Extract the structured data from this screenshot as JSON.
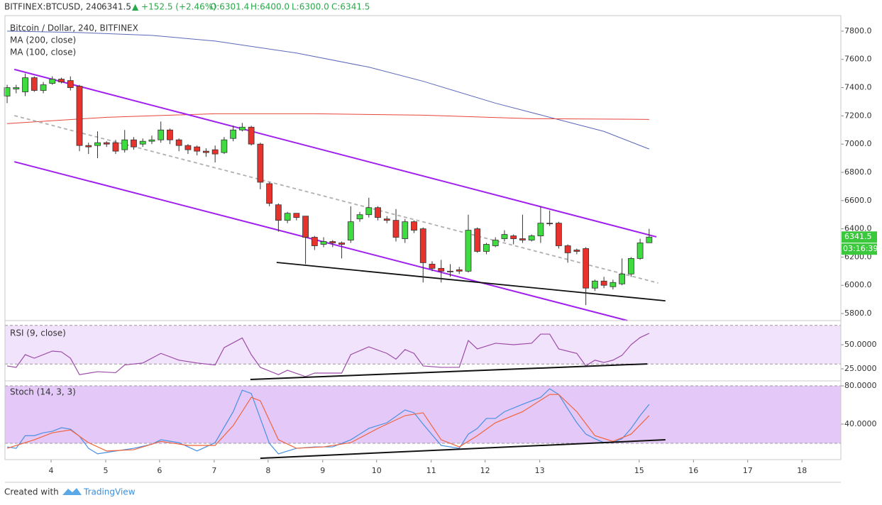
{
  "chart_data": {
    "type": "candlestick",
    "header": {
      "symbol": "BITFINEX:BTCUSD, 240",
      "last": "6341.5",
      "change": "▲ +152.5 (+2.46%)",
      "open": "O:6301.4",
      "high": "H:6400.0",
      "low": "L:6300.0",
      "close": "C:6341.5"
    },
    "title": "Bitcoin / Dollar, 240, BITFINEX",
    "countdown": "03:16:39",
    "up_color": "#3fdc3f",
    "down_color": "#e8322c",
    "xlim": [
      -0.24,
      92.2
    ],
    "xticks": [
      {
        "value": 4.86,
        "label": "4"
      },
      {
        "value": 10.9,
        "label": "5"
      },
      {
        "value": 16.86,
        "label": "6"
      },
      {
        "value": 22.9,
        "label": "7"
      },
      {
        "value": 28.86,
        "label": "8"
      },
      {
        "value": 34.9,
        "label": "9"
      },
      {
        "value": 40.86,
        "label": "10"
      },
      {
        "value": 46.9,
        "label": "11"
      },
      {
        "value": 52.86,
        "label": "12"
      },
      {
        "value": 58.9,
        "label": "13"
      },
      {
        "value": 69.9,
        "label": "15"
      },
      {
        "value": 75.9,
        "label": "16"
      },
      {
        "value": 81.9,
        "label": "17"
      },
      {
        "value": 87.9,
        "label": "18"
      }
    ],
    "ylim": [
      5750,
      7910
    ],
    "yticks": [
      {
        "value": 5800,
        "label": "5800.0"
      },
      {
        "value": 6000,
        "label": "6000.0"
      },
      {
        "value": 6200,
        "label": "6200.0"
      },
      {
        "value": 6400,
        "label": "6400.0"
      },
      {
        "value": 6600,
        "label": "6600.0"
      },
      {
        "value": 6800,
        "label": "6800.0"
      },
      {
        "value": 7000,
        "label": "7000.0"
      },
      {
        "value": 7200,
        "label": "7200.0"
      },
      {
        "value": 7400,
        "label": "7400.0"
      },
      {
        "value": 7600,
        "label": "7600.0"
      },
      {
        "value": 7800,
        "label": "7800.0"
      }
    ],
    "open": [
      7340,
      7390,
      7370,
      7470,
      7380,
      7430,
      7460,
      7450,
      7410,
      6990,
      6990,
      7010,
      7010,
      6960,
      7030,
      7000,
      7020,
      7030,
      7100,
      7030,
      6990,
      6980,
      6950,
      6960,
      6940,
      7040,
      7100,
      7120,
      7000,
      6720,
      6570,
      6460,
      6510,
      6490,
      6340,
      6290,
      6310,
      6300,
      6320,
      6470,
      6500,
      6550,
      6470,
      6460,
      6330,
      6450,
      6400,
      6150,
      6120,
      6100,
      6110,
      6100,
      6400,
      6240,
      6280,
      6330,
      6350,
      6330,
      6320,
      6350,
      6440,
      6440,
      6280,
      6250,
      6260,
      5980,
      6030,
      5990,
      6010,
      6080,
      6190,
      6301.4
    ],
    "high": [
      7420,
      7420,
      7500,
      7480,
      7440,
      7480,
      7470,
      7480,
      7420,
      7010,
      7090,
      7020,
      7030,
      7100,
      7050,
      7040,
      7060,
      7160,
      7110,
      7040,
      7000,
      6990,
      6970,
      6990,
      7050,
      7130,
      7150,
      7130,
      7010,
      6730,
      6580,
      6520,
      6500,
      6490,
      6350,
      6340,
      6320,
      6310,
      6560,
      6520,
      6620,
      6560,
      6490,
      6540,
      6470,
      6460,
      6410,
      6170,
      6180,
      6150,
      6130,
      6500,
      6410,
      6300,
      6340,
      6390,
      6360,
      6500,
      6360,
      6560,
      6530,
      6450,
      6290,
      6260,
      6270,
      6040,
      6060,
      6040,
      6190,
      6200,
      6330,
      6400
    ],
    "low": [
      7290,
      7360,
      7340,
      7370,
      7360,
      7420,
      7430,
      7380,
      6950,
      6930,
      6900,
      6980,
      6930,
      6940,
      6960,
      6980,
      7000,
      7010,
      7000,
      6950,
      6930,
      6920,
      6910,
      6870,
      6930,
      7020,
      7090,
      6990,
      6680,
      6560,
      6380,
      6440,
      6460,
      6150,
      6250,
      6270,
      6270,
      6190,
      6300,
      6450,
      6480,
      6460,
      6440,
      6310,
      6300,
      6370,
      6020,
      6100,
      6020,
      6060,
      6080,
      6090,
      6230,
      6220,
      6270,
      6310,
      6290,
      6300,
      6310,
      6300,
      6420,
      6260,
      6160,
      6220,
      5860,
      5960,
      5980,
      5970,
      6000,
      6060,
      6180,
      6300
    ],
    "close": [
      7400,
      7400,
      7470,
      7380,
      7420,
      7460,
      7440,
      7400,
      6990,
      6980,
      7010,
      7000,
      6950,
      7030,
      6980,
      7020,
      7030,
      7100,
      7030,
      6990,
      6960,
      6950,
      6940,
      6930,
      7030,
      7100,
      7120,
      7000,
      6730,
      6580,
      6460,
      6510,
      6480,
      6340,
      6280,
      6310,
      6300,
      6290,
      6450,
      6500,
      6550,
      6480,
      6460,
      6340,
      6450,
      6390,
      6160,
      6120,
      6100,
      6100,
      6100,
      6390,
      6240,
      6290,
      6320,
      6360,
      6330,
      6320,
      6350,
      6440,
      6440,
      6280,
      6230,
      6240,
      5980,
      6030,
      6000,
      6020,
      6080,
      6190,
      6300,
      6341.5
    ],
    "series": [
      {
        "name": "MA (200, close)",
        "color": "#5a67b8",
        "x": [
          0,
          8,
          16,
          23,
          32,
          40,
          46,
          54,
          60,
          66,
          71
        ],
        "values": [
          7800,
          7790,
          7770,
          7730,
          7645,
          7545,
          7445,
          7290,
          7190,
          7090,
          6965
        ]
      },
      {
        "name": "MA (100, close)",
        "color": "#e8453c",
        "x": [
          0,
          11,
          23,
          34,
          46,
          58,
          71
        ],
        "values": [
          7145,
          7190,
          7215,
          7215,
          7205,
          7180,
          7175
        ]
      }
    ],
    "trendlines": [
      {
        "color": "#a020f0",
        "dashed": false,
        "x": [
          0.8,
          71.8
        ],
        "values": [
          7529,
          6343
        ]
      },
      {
        "color": "#a020f0",
        "dashed": false,
        "x": [
          0.8,
          68.6
        ],
        "values": [
          6875,
          5750
        ]
      },
      {
        "color": "#b0b0b0",
        "dashed": true,
        "x": [
          0.8,
          72
        ],
        "values": [
          7202,
          6016
        ]
      },
      {
        "color": "#111111",
        "dashed": false,
        "x": [
          29.8,
          72.8
        ],
        "values": [
          6162,
          5890
        ]
      }
    ],
    "rsi": {
      "title": "RSI (9, close)",
      "ylim": [
        12.5,
        75
      ],
      "yticks": [
        {
          "value": 25,
          "label": "25.0000"
        },
        {
          "value": 50,
          "label": "50.0000"
        }
      ],
      "bands": [
        70,
        30
      ],
      "band_color": "#f1e3fb",
      "color": "#9c4ca8",
      "x": [
        0,
        1,
        2,
        3,
        5,
        6,
        7,
        8,
        10,
        12,
        13,
        15,
        17,
        19,
        21,
        23,
        24,
        26,
        27,
        28,
        30,
        31,
        33,
        34,
        35,
        37,
        38,
        40,
        42,
        43,
        44,
        45,
        46,
        48,
        50,
        51,
        52,
        54,
        56,
        58,
        59,
        60,
        61,
        63,
        64,
        65,
        66,
        67,
        68,
        69,
        70,
        71
      ],
      "values": [
        28,
        26.5,
        39.7,
        36,
        43.4,
        42.6,
        36,
        19,
        22,
        21,
        29,
        31,
        41,
        34,
        31,
        29,
        47,
        57,
        39.7,
        26.5,
        19,
        23.5,
        17,
        20.6,
        20.6,
        20.6,
        39.7,
        47.8,
        41,
        35,
        45,
        41,
        28,
        26.5,
        26.5,
        54.4,
        45.6,
        51.5,
        50,
        51.5,
        61,
        61,
        45.6,
        41,
        28,
        34,
        31.6,
        34,
        39,
        50,
        57.4,
        61.8
      ],
      "trendlines": [
        {
          "color": "#111111",
          "dashed": false,
          "x": [
            26.9,
            70.8
          ],
          "values": [
            14,
            30.1
          ]
        }
      ]
    },
    "stoch": {
      "title": "Stoch (14, 3, 3)",
      "ylim": [
        3,
        85.2
      ],
      "yticks": [
        {
          "value": 40,
          "label": "40.0000"
        },
        {
          "value": 80,
          "label": "80.0000"
        }
      ],
      "bands": [
        80,
        20
      ],
      "band_color": "#e4c8f8",
      "series": [
        {
          "color": "#4a90e2",
          "x": [
            0,
            1,
            2,
            3,
            4,
            5,
            6,
            7,
            8,
            9,
            10,
            12,
            14,
            16,
            17,
            19,
            21,
            23,
            25,
            26,
            27,
            28,
            29,
            30,
            32,
            34,
            36,
            38,
            40,
            42,
            44,
            45,
            46,
            48,
            50,
            51,
            52,
            53,
            54,
            55,
            57,
            59,
            60,
            61,
            62,
            63,
            64,
            65,
            66,
            67,
            68,
            69,
            70,
            71
          ],
          "values": [
            16.3,
            14.8,
            28,
            28,
            31,
            32.6,
            36.3,
            34.8,
            27.4,
            14.8,
            9,
            12,
            14.8,
            19,
            23.7,
            20.7,
            12,
            20.7,
            53,
            75.5,
            72,
            46,
            20,
            9,
            14.8,
            16.3,
            16.3,
            23.7,
            35.6,
            41.5,
            54.8,
            51.9,
            40,
            17.8,
            14.8,
            29.6,
            35.6,
            46,
            46,
            53,
            60.7,
            68,
            77,
            71,
            56,
            41.5,
            29.6,
            24.8,
            20.7,
            20.7,
            24.8,
            35.6,
            48.9,
            60.7
          ]
        },
        {
          "color": "#f0643c",
          "x": [
            0,
            1,
            3,
            5,
            7,
            9,
            11,
            14,
            17,
            20,
            23,
            25,
            27,
            28,
            30,
            32,
            35,
            38,
            41,
            44,
            46,
            48,
            50,
            52,
            54,
            57,
            60,
            61,
            63,
            65,
            67,
            69,
            71
          ],
          "values": [
            14.8,
            17.8,
            23.7,
            31,
            34,
            20.7,
            12,
            13.3,
            22,
            17.8,
            17.8,
            38.5,
            68,
            64.4,
            23.7,
            14.8,
            16.3,
            20.7,
            35.6,
            48.9,
            51.9,
            23.7,
            16.3,
            28,
            41.5,
            53,
            71,
            71,
            53,
            28,
            22,
            29.6,
            48.9
          ]
        }
      ],
      "trendlines": [
        {
          "color": "#111111",
          "dashed": false,
          "x": [
            28,
            72.8
          ],
          "values": [
            4.4,
            23.7
          ]
        }
      ]
    },
    "footer": {
      "created": "Created with",
      "brand": "TradingView"
    }
  }
}
